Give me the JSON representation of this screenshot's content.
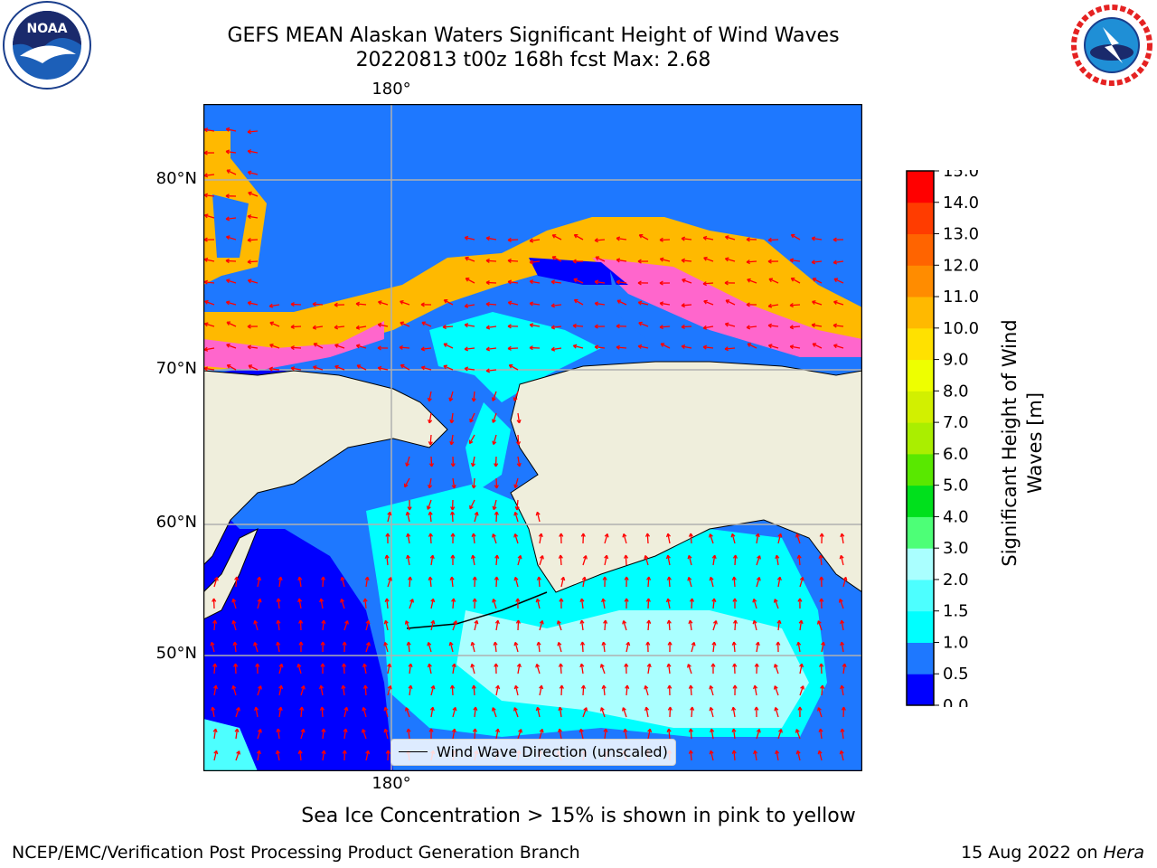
{
  "header": {
    "title_line1": "GEFS MEAN Alaskan Waters Significant Height of Wind Waves",
    "title_line2": "20220813 t00z 168h fcst   Max: 2.68"
  },
  "logos": {
    "noaa": {
      "text": "NOAA",
      "ring_text": "NATIONAL OCEANIC AND ATMOSPHERIC ADMINISTRATION · U.S. DEPARTMENT OF COMMERCE"
    },
    "nws": {
      "ring_text": "NATIONAL WEATHER SERVICE"
    }
  },
  "map": {
    "lat_labels": [
      "80°N",
      "70°N",
      "60°N",
      "50°N"
    ],
    "lon_label_top": "180°",
    "lon_label_bottom": "180°",
    "legend_label": "Wind Wave Direction (unscaled)",
    "colors": {
      "land": "#efeedc",
      "arrow": "#ff0000",
      "grid": "#b0b0b0"
    }
  },
  "colorbar": {
    "title_line1": "Significant Height of Wind",
    "title_line2": "Waves [m]",
    "ticks": [
      "0.0",
      "0.5",
      "1.0",
      "1.5",
      "2.0",
      "3.0",
      "4.0",
      "5.0",
      "6.0",
      "7.0",
      "8.0",
      "9.0",
      "10.0",
      "11.0",
      "12.0",
      "13.0",
      "14.0",
      "15.0"
    ],
    "colors": [
      "#0000ff",
      "#1e78ff",
      "#00ffff",
      "#4dffff",
      "#aaffff",
      "#4dff77",
      "#00e01c",
      "#59e800",
      "#aaee00",
      "#d2f000",
      "#eeff00",
      "#ffe100",
      "#ffb900",
      "#ff8c00",
      "#ff6400",
      "#ff3c00",
      "#ff0000"
    ]
  },
  "notes": {
    "ice": "Sea Ice Concentration > 15% is shown in pink to yellow",
    "footer_left": "NCEP/EMC/Verification Post Processing Product Generation Branch",
    "footer_right_date": "15 Aug 2022 on ",
    "footer_right_machine": "Hera"
  }
}
